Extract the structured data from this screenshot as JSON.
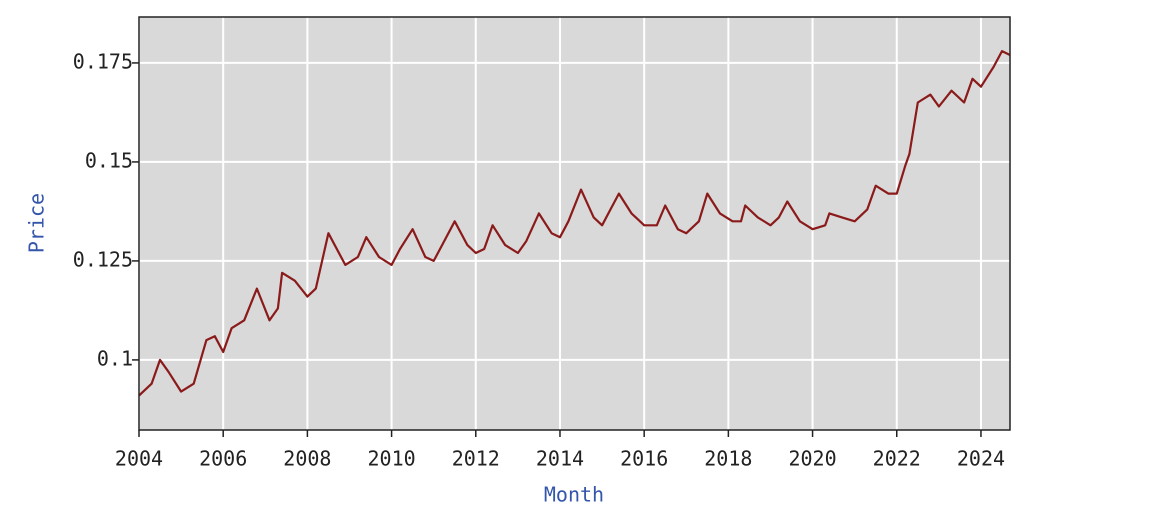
{
  "chart_data": {
    "type": "line",
    "x_label": "Month",
    "y_label": "Price",
    "x": [
      2004.0,
      2004.3,
      2004.5,
      2004.7,
      2005.0,
      2005.3,
      2005.6,
      2005.8,
      2006.0,
      2006.2,
      2006.5,
      2006.8,
      2007.1,
      2007.3,
      2007.4,
      2007.7,
      2008.0,
      2008.2,
      2008.5,
      2008.9,
      2009.2,
      2009.4,
      2009.7,
      2010.0,
      2010.2,
      2010.5,
      2010.8,
      2011.0,
      2011.2,
      2011.5,
      2011.8,
      2012.0,
      2012.2,
      2012.4,
      2012.7,
      2013.0,
      2013.2,
      2013.5,
      2013.8,
      2014.0,
      2014.2,
      2014.5,
      2014.8,
      2015.0,
      2015.2,
      2015.4,
      2015.7,
      2016.0,
      2016.3,
      2016.5,
      2016.8,
      2017.0,
      2017.3,
      2017.5,
      2017.8,
      2018.1,
      2018.3,
      2018.4,
      2018.7,
      2019.0,
      2019.2,
      2019.4,
      2019.7,
      2020.0,
      2020.3,
      2020.4,
      2020.7,
      2021.0,
      2021.3,
      2021.5,
      2021.8,
      2022.0,
      2022.2,
      2022.3,
      2022.5,
      2022.8,
      2023.0,
      2023.3,
      2023.6,
      2023.8,
      2024.0,
      2024.3,
      2024.5,
      2024.69
    ],
    "values": [
      0.091,
      0.094,
      0.1,
      0.097,
      0.092,
      0.094,
      0.105,
      0.106,
      0.102,
      0.108,
      0.11,
      0.118,
      0.11,
      0.113,
      0.122,
      0.12,
      0.116,
      0.118,
      0.132,
      0.124,
      0.126,
      0.131,
      0.126,
      0.124,
      0.128,
      0.133,
      0.126,
      0.125,
      0.129,
      0.135,
      0.129,
      0.127,
      0.128,
      0.134,
      0.129,
      0.127,
      0.13,
      0.137,
      0.132,
      0.131,
      0.135,
      0.143,
      0.136,
      0.134,
      0.138,
      0.142,
      0.137,
      0.134,
      0.134,
      0.139,
      0.133,
      0.132,
      0.135,
      0.142,
      0.137,
      0.135,
      0.135,
      0.139,
      0.136,
      0.134,
      0.136,
      0.14,
      0.135,
      0.133,
      0.134,
      0.137,
      0.136,
      0.135,
      0.138,
      0.144,
      0.142,
      0.142,
      0.149,
      0.152,
      0.165,
      0.167,
      0.164,
      0.168,
      0.165,
      0.171,
      0.169,
      0.174,
      0.178,
      0.177
    ],
    "color": "#8b1a1a",
    "xlim": [
      2004,
      2024.69
    ],
    "xticks": [
      2004,
      2006,
      2008,
      2010,
      2012,
      2014,
      2016,
      2018,
      2020,
      2022,
      2024
    ],
    "ylim": [
      0.0823,
      0.1866
    ],
    "yticks": [
      0.1,
      0.125,
      0.15,
      0.175
    ],
    "grid": true
  }
}
